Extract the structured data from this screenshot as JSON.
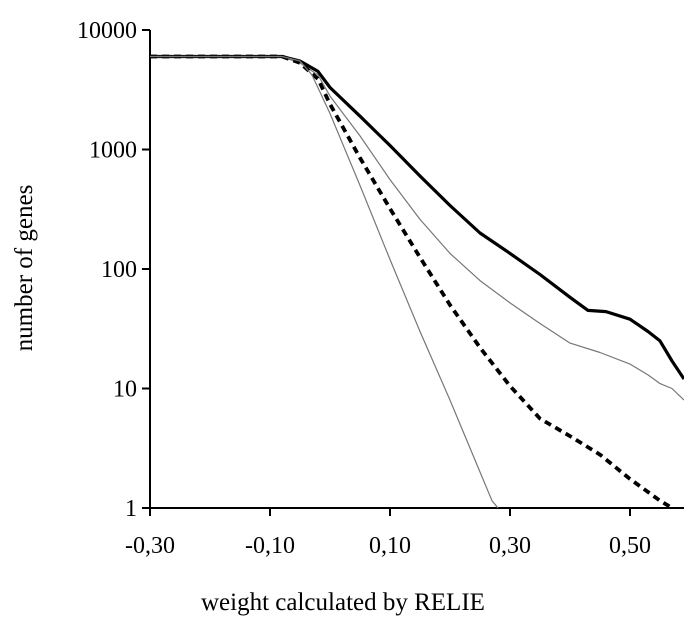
{
  "chart_data": {
    "type": "line",
    "title": "",
    "xlabel": "weight calculated by RELIE",
    "ylabel": "number of genes",
    "x_ticks": [
      "-0,30",
      "-0,10",
      "0,10",
      "0,30",
      "0,50"
    ],
    "y_ticks": [
      "1",
      "10",
      "100",
      "1000",
      "10000"
    ],
    "xlim": [
      -0.3,
      0.59
    ],
    "ylim": [
      1,
      10000
    ],
    "y_scale": "log",
    "grid": false,
    "legend": "none",
    "series": [
      {
        "style": "thick-solid",
        "points": [
          [
            -0.3,
            6000
          ],
          [
            -0.08,
            6000
          ],
          [
            -0.05,
            5500
          ],
          [
            -0.02,
            4500
          ],
          [
            0.0,
            3300
          ],
          [
            0.05,
            1900
          ],
          [
            0.1,
            1080
          ],
          [
            0.15,
            600
          ],
          [
            0.2,
            340
          ],
          [
            0.25,
            200
          ],
          [
            0.3,
            135
          ],
          [
            0.35,
            90
          ],
          [
            0.4,
            58
          ],
          [
            0.43,
            45
          ],
          [
            0.46,
            44
          ],
          [
            0.5,
            38
          ],
          [
            0.53,
            30
          ],
          [
            0.55,
            25
          ],
          [
            0.57,
            17
          ],
          [
            0.59,
            12
          ]
        ]
      },
      {
        "style": "thin-solid",
        "points": [
          [
            -0.3,
            6000
          ],
          [
            -0.08,
            6000
          ],
          [
            -0.05,
            5300
          ],
          [
            -0.02,
            4200
          ],
          [
            0.0,
            2800
          ],
          [
            0.05,
            1300
          ],
          [
            0.1,
            560
          ],
          [
            0.15,
            260
          ],
          [
            0.2,
            135
          ],
          [
            0.25,
            80
          ],
          [
            0.3,
            52
          ],
          [
            0.35,
            35
          ],
          [
            0.4,
            24
          ],
          [
            0.45,
            20
          ],
          [
            0.5,
            16
          ],
          [
            0.53,
            13
          ],
          [
            0.55,
            11
          ],
          [
            0.57,
            10
          ],
          [
            0.59,
            8
          ]
        ]
      },
      {
        "style": "thick-dashed",
        "points": [
          [
            -0.3,
            6000
          ],
          [
            -0.08,
            6000
          ],
          [
            -0.05,
            5300
          ],
          [
            -0.02,
            3900
          ],
          [
            0.0,
            2400
          ],
          [
            0.05,
            850
          ],
          [
            0.1,
            320
          ],
          [
            0.15,
            125
          ],
          [
            0.2,
            50
          ],
          [
            0.25,
            22
          ],
          [
            0.3,
            10.5
          ],
          [
            0.35,
            5.6
          ],
          [
            0.4,
            4.0
          ],
          [
            0.45,
            2.8
          ],
          [
            0.5,
            1.75
          ],
          [
            0.55,
            1.15
          ],
          [
            0.57,
            1.0
          ]
        ]
      },
      {
        "style": "thin-solid",
        "points": [
          [
            -0.3,
            6000
          ],
          [
            -0.08,
            6000
          ],
          [
            -0.05,
            5500
          ],
          [
            -0.03,
            4200
          ],
          [
            0.0,
            2000
          ],
          [
            0.05,
            500
          ],
          [
            0.1,
            120
          ],
          [
            0.15,
            30
          ],
          [
            0.2,
            8
          ],
          [
            0.25,
            2
          ],
          [
            0.27,
            1.15
          ],
          [
            0.28,
            1.0
          ]
        ]
      }
    ]
  }
}
